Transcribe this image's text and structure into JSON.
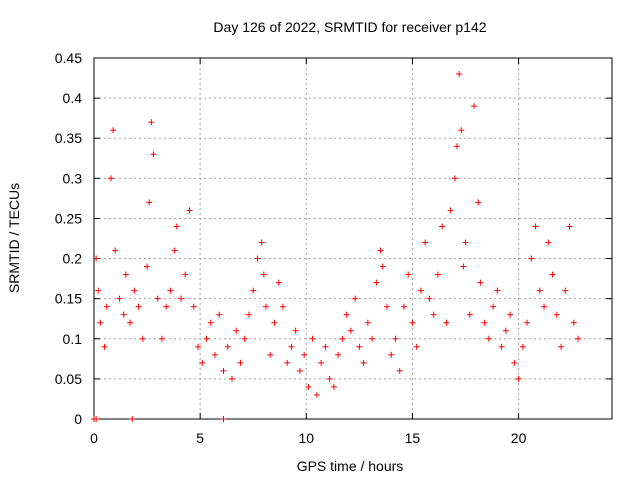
{
  "chart_data": {
    "type": "scatter",
    "title": "Day 126 of 2022, SRMTID for receiver p142",
    "xlabel": "GPS time / hours",
    "ylabel": "SRMTID / TECUs",
    "xlim": [
      0,
      24.4
    ],
    "ylim": [
      0,
      0.45
    ],
    "xticks": [
      0,
      5,
      10,
      15,
      20
    ],
    "yticks": [
      0,
      0.05,
      0.1,
      0.15,
      0.2,
      0.25,
      0.3,
      0.35,
      0.4,
      0.45
    ],
    "grid": true,
    "marker": "+",
    "color": "#ff0000",
    "series": [
      {
        "name": "SRMTID",
        "x": [
          0.1,
          0.2,
          0.3,
          0.5,
          0.6,
          0.8,
          0.9,
          1.0,
          1.2,
          1.4,
          1.5,
          1.7,
          1.9,
          2.1,
          2.3,
          2.5,
          2.6,
          2.7,
          2.8,
          3.0,
          3.2,
          3.4,
          3.6,
          3.8,
          3.9,
          4.1,
          4.3,
          4.5,
          4.7,
          4.9,
          5.1,
          5.3,
          5.5,
          5.7,
          5.9,
          6.1,
          6.3,
          6.5,
          6.7,
          6.9,
          7.1,
          7.3,
          7.5,
          7.7,
          7.9,
          8.0,
          8.1,
          8.3,
          8.5,
          8.7,
          8.9,
          9.1,
          9.3,
          9.5,
          9.7,
          9.9,
          10.1,
          10.3,
          10.5,
          10.7,
          10.9,
          11.1,
          11.3,
          11.5,
          11.7,
          11.9,
          12.1,
          12.3,
          12.5,
          12.7,
          12.9,
          13.1,
          13.3,
          13.5,
          13.6,
          13.8,
          14.0,
          14.2,
          14.4,
          14.6,
          14.8,
          15.0,
          15.2,
          15.4,
          15.6,
          15.8,
          16.0,
          16.2,
          16.4,
          16.6,
          16.8,
          17.0,
          17.1,
          17.2,
          17.3,
          17.4,
          17.5,
          17.7,
          17.9,
          18.1,
          18.2,
          18.4,
          18.6,
          18.8,
          19.0,
          19.2,
          19.4,
          19.6,
          19.8,
          20.0,
          20.2,
          20.4,
          20.6,
          20.8,
          21.0,
          21.2,
          21.4,
          21.6,
          21.8,
          22.0,
          22.2,
          22.4,
          22.6,
          22.8,
          0.0,
          0.1,
          1.8,
          6.1
        ],
        "y": [
          0.2,
          0.16,
          0.12,
          0.09,
          0.14,
          0.3,
          0.36,
          0.21,
          0.15,
          0.13,
          0.18,
          0.12,
          0.16,
          0.14,
          0.1,
          0.19,
          0.27,
          0.37,
          0.33,
          0.15,
          0.1,
          0.14,
          0.16,
          0.21,
          0.24,
          0.15,
          0.18,
          0.26,
          0.14,
          0.09,
          0.07,
          0.1,
          0.12,
          0.08,
          0.13,
          0.06,
          0.09,
          0.05,
          0.11,
          0.07,
          0.1,
          0.13,
          0.16,
          0.2,
          0.22,
          0.18,
          0.14,
          0.08,
          0.12,
          0.17,
          0.14,
          0.07,
          0.09,
          0.11,
          0.06,
          0.08,
          0.04,
          0.1,
          0.03,
          0.07,
          0.09,
          0.05,
          0.04,
          0.08,
          0.1,
          0.13,
          0.11,
          0.15,
          0.09,
          0.07,
          0.12,
          0.1,
          0.17,
          0.21,
          0.19,
          0.14,
          0.08,
          0.1,
          0.06,
          0.14,
          0.18,
          0.12,
          0.09,
          0.16,
          0.22,
          0.15,
          0.13,
          0.18,
          0.24,
          0.12,
          0.26,
          0.3,
          0.34,
          0.43,
          0.36,
          0.19,
          0.22,
          0.13,
          0.39,
          0.27,
          0.17,
          0.12,
          0.1,
          0.14,
          0.16,
          0.09,
          0.11,
          0.13,
          0.07,
          0.05,
          0.09,
          0.12,
          0.2,
          0.24,
          0.16,
          0.14,
          0.22,
          0.18,
          0.13,
          0.09,
          0.16,
          0.24,
          0.12,
          0.1,
          0.0,
          0.0,
          0.0,
          0.0
        ]
      }
    ]
  }
}
